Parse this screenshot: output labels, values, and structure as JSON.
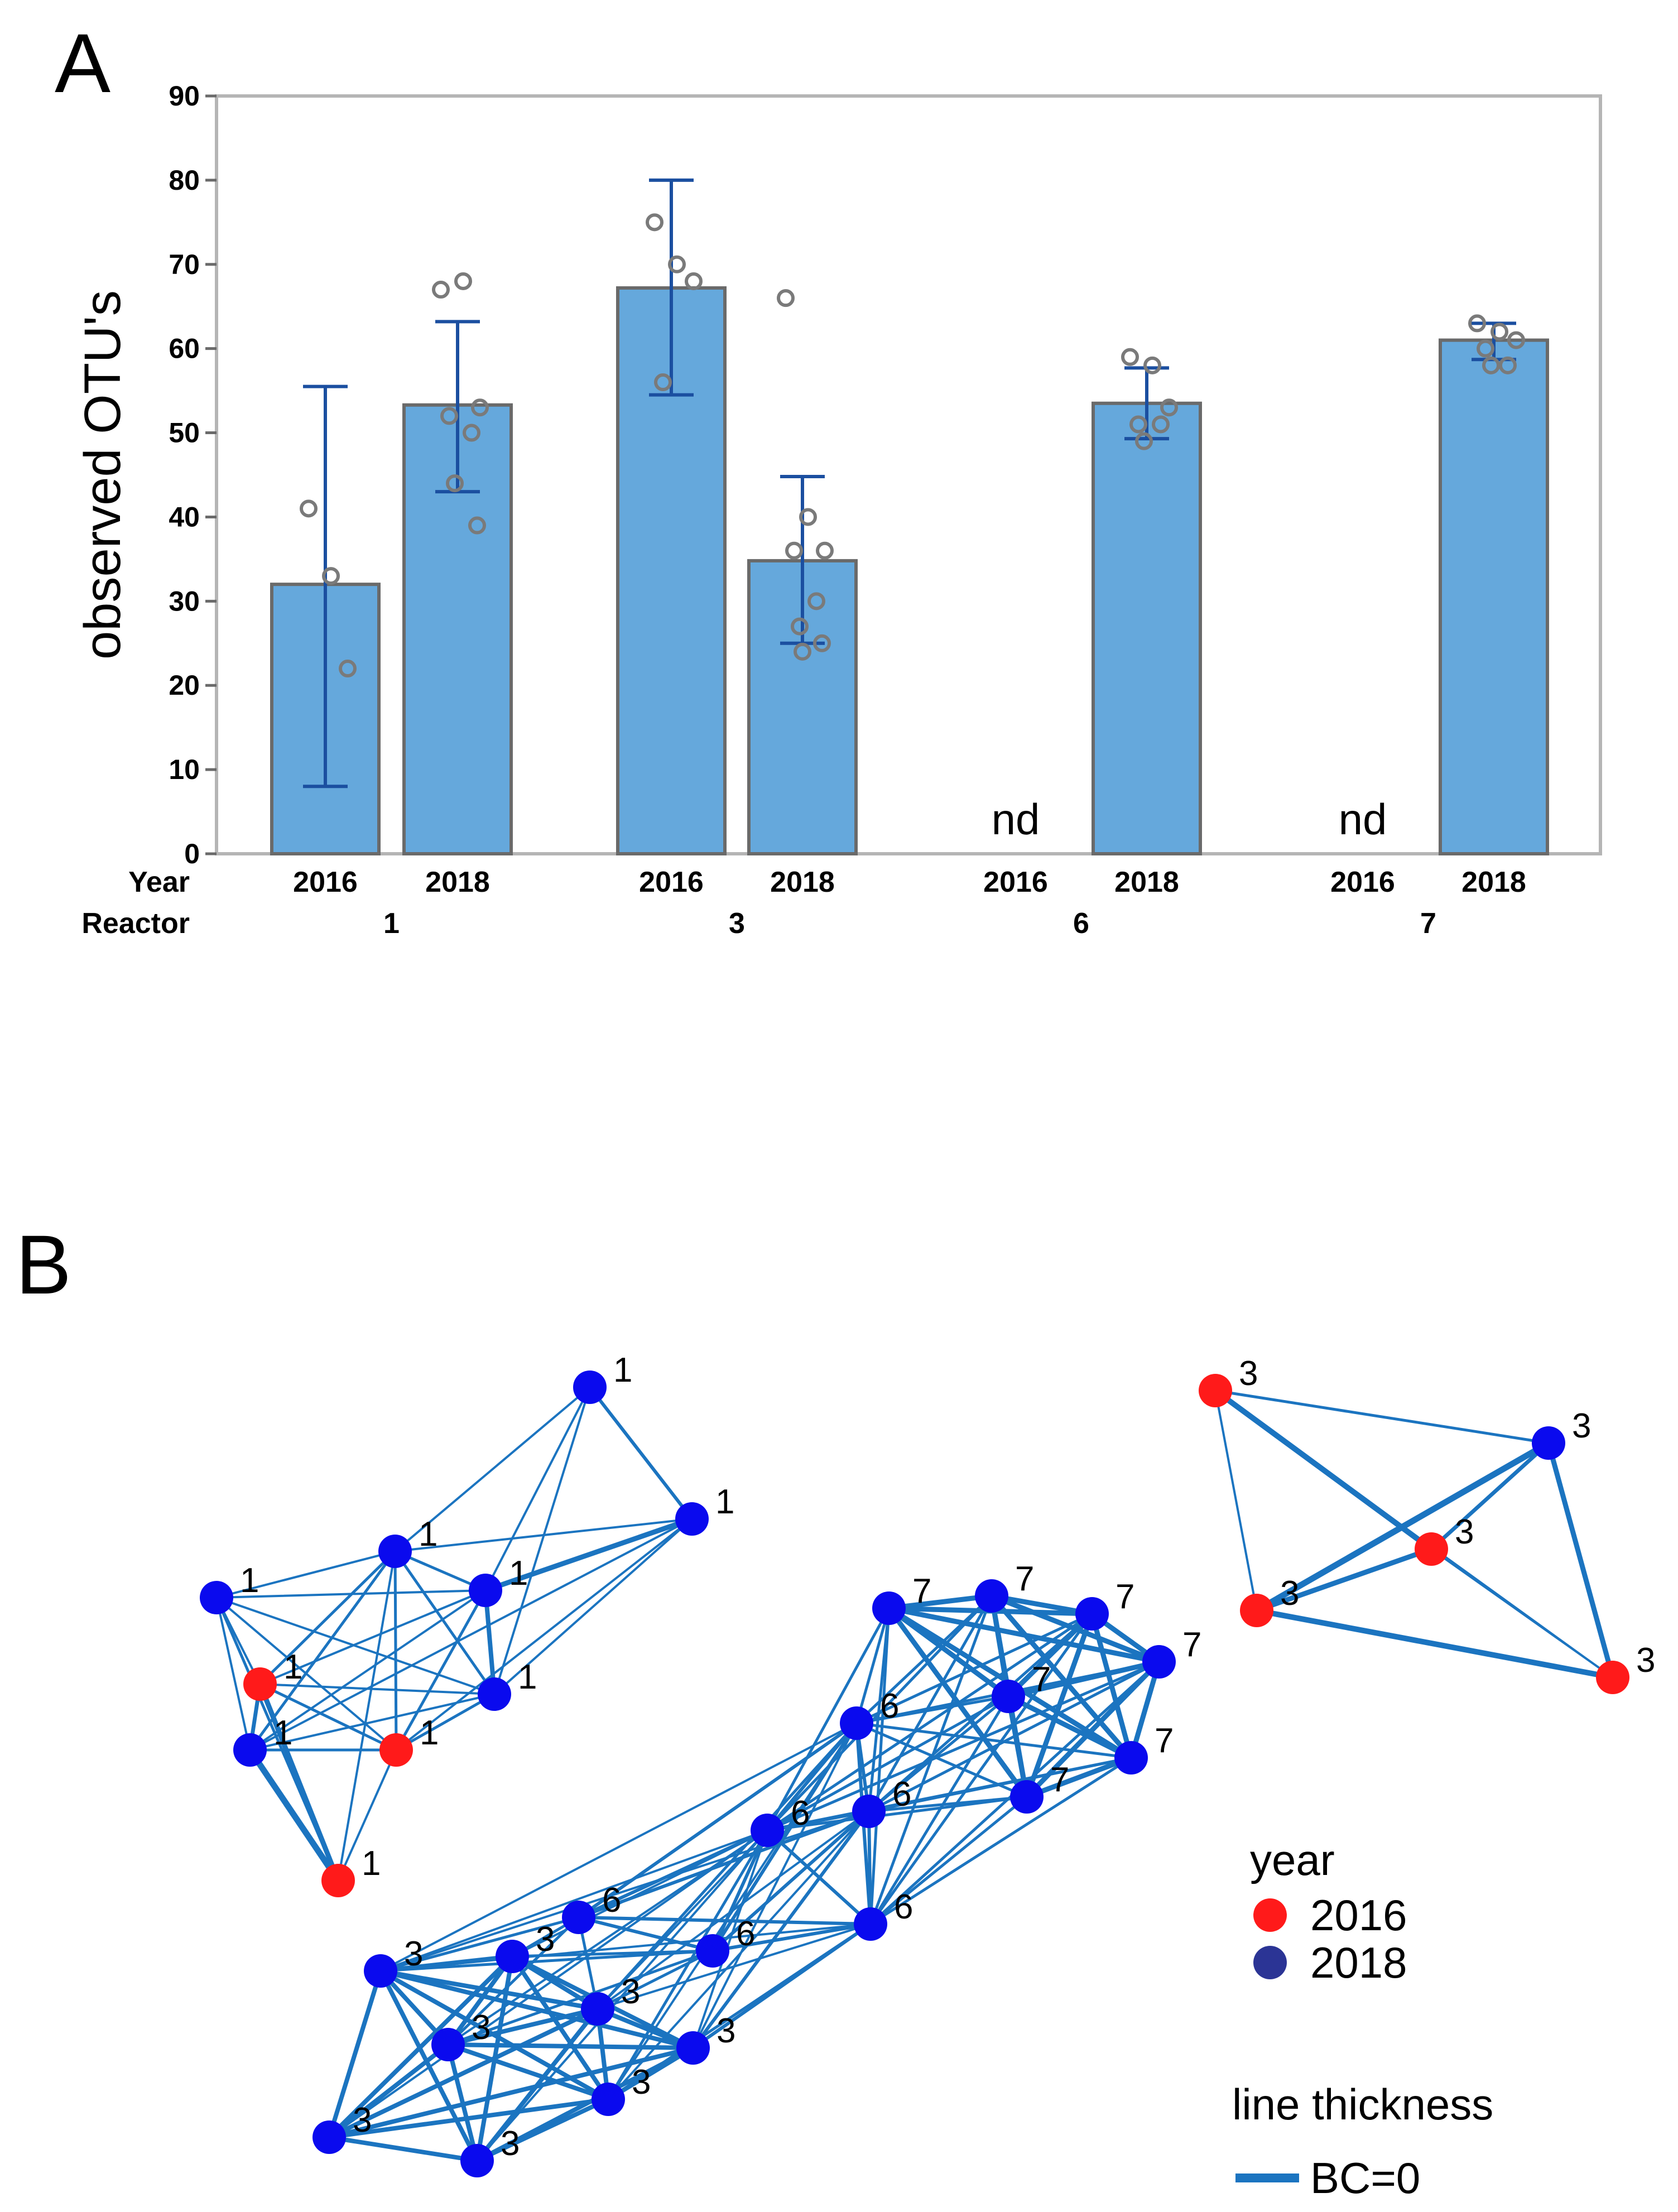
{
  "panel_a": {
    "letter": "A",
    "chart_data": {
      "type": "bar",
      "ylabel": "observed OTU's",
      "ylim": [
        0,
        90
      ],
      "yticks": [
        "0",
        "10",
        "20",
        "30",
        "40",
        "50",
        "60",
        "70",
        "80",
        "90"
      ],
      "row_labels": {
        "year": "Year",
        "reactor": "Reactor"
      },
      "groups": [
        {
          "reactor": "1",
          "bars": [
            {
              "year": "2016",
              "value": 32,
              "err_low": 8,
              "err_high": 55.5,
              "points": [
                41,
                33,
                22
              ],
              "nd": false,
              "nd_label": ""
            },
            {
              "year": "2018",
              "value": 53.3,
              "err_low": 43,
              "err_high": 63.2,
              "points": [
                67,
                68,
                53,
                52,
                50,
                44,
                39
              ],
              "nd": false,
              "nd_label": ""
            }
          ]
        },
        {
          "reactor": "3",
          "bars": [
            {
              "year": "2016",
              "value": 67.2,
              "err_low": 54.5,
              "err_high": 80,
              "points": [
                75,
                70,
                68,
                56
              ],
              "nd": false,
              "nd_label": ""
            },
            {
              "year": "2018",
              "value": 34.8,
              "err_low": 25,
              "err_high": 44.8,
              "points": [
                66,
                40,
                36,
                36,
                30,
                27,
                25,
                24
              ],
              "nd": false,
              "nd_label": ""
            }
          ]
        },
        {
          "reactor": "6",
          "bars": [
            {
              "year": "2016",
              "value": null,
              "err_low": null,
              "err_high": null,
              "points": [],
              "nd": true,
              "nd_label": "nd"
            },
            {
              "year": "2018",
              "value": 53.5,
              "err_low": 49.3,
              "err_high": 57.7,
              "points": [
                59,
                58,
                53,
                51,
                51,
                49
              ],
              "nd": false,
              "nd_label": ""
            }
          ]
        },
        {
          "reactor": "7",
          "bars": [
            {
              "year": "2016",
              "value": null,
              "err_low": null,
              "err_high": null,
              "points": [],
              "nd": true,
              "nd_label": "nd"
            },
            {
              "year": "2018",
              "value": 61,
              "err_low": 58.7,
              "err_high": 63,
              "points": [
                63,
                62,
                61,
                60,
                58,
                58
              ],
              "nd": false,
              "nd_label": ""
            }
          ]
        }
      ],
      "colors": {
        "bar_fill": "#65a8dc",
        "bar_edge": "#6a6a6a",
        "error_bar": "#1b4fa0",
        "point_edge": "#7a7a7a",
        "frame": "#b5b5b5"
      }
    }
  },
  "panel_b": {
    "letter": "B",
    "chart_data": {
      "type": "network",
      "nodes": [
        {
          "id": "a1",
          "label": "1",
          "year": "2018"
        },
        {
          "id": "a2",
          "label": "1",
          "year": "2018"
        },
        {
          "id": "a3",
          "label": "1",
          "year": "2018"
        },
        {
          "id": "a4",
          "label": "1",
          "year": "2018"
        },
        {
          "id": "a5",
          "label": "1",
          "year": "2018"
        },
        {
          "id": "a6",
          "label": "1",
          "year": "2016"
        },
        {
          "id": "a7",
          "label": "1",
          "year": "2018"
        },
        {
          "id": "a8",
          "label": "1",
          "year": "2016"
        },
        {
          "id": "a9",
          "label": "1",
          "year": "2018"
        },
        {
          "id": "a10",
          "label": "1",
          "year": "2016"
        },
        {
          "id": "b1",
          "label": "3",
          "year": "2016"
        },
        {
          "id": "b2",
          "label": "3",
          "year": "2018"
        },
        {
          "id": "b3",
          "label": "3",
          "year": "2016"
        },
        {
          "id": "b4",
          "label": "3",
          "year": "2016"
        },
        {
          "id": "b5",
          "label": "3",
          "year": "2016"
        },
        {
          "id": "s1",
          "label": "7",
          "year": "2018"
        },
        {
          "id": "s2",
          "label": "7",
          "year": "2018"
        },
        {
          "id": "s3",
          "label": "7",
          "year": "2018"
        },
        {
          "id": "s4",
          "label": "7",
          "year": "2018"
        },
        {
          "id": "s5",
          "label": "7",
          "year": "2018"
        },
        {
          "id": "s6",
          "label": "7",
          "year": "2018"
        },
        {
          "id": "s7",
          "label": "7",
          "year": "2018"
        },
        {
          "id": "s8",
          "label": "6",
          "year": "2018"
        },
        {
          "id": "s9",
          "label": "6",
          "year": "2018"
        },
        {
          "id": "s10",
          "label": "6",
          "year": "2018"
        },
        {
          "id": "s11",
          "label": "6",
          "year": "2018"
        },
        {
          "id": "s12",
          "label": "6",
          "year": "2018"
        },
        {
          "id": "s13",
          "label": "6",
          "year": "2018"
        },
        {
          "id": "s14",
          "label": "3",
          "year": "2018"
        },
        {
          "id": "s15",
          "label": "3",
          "year": "2018"
        },
        {
          "id": "s16",
          "label": "3",
          "year": "2018"
        },
        {
          "id": "s17",
          "label": "3",
          "year": "2018"
        },
        {
          "id": "s18",
          "label": "3",
          "year": "2018"
        },
        {
          "id": "s19",
          "label": "3",
          "year": "2018"
        },
        {
          "id": "s20",
          "label": "3",
          "year": "2018"
        },
        {
          "id": "s21",
          "label": "3",
          "year": "2018"
        }
      ],
      "legend": {
        "year_title": "year",
        "years": [
          {
            "label": "2016",
            "color": "#ff1a1a"
          },
          {
            "label": "2018",
            "color": "#2b3495"
          }
        ],
        "thickness_title": "line thickness",
        "thickness_label": "BC=0"
      },
      "colors": {
        "node_2016": "#ff1a1a",
        "node_2018": "#0a0aee",
        "edge": "#1b74c0"
      }
    }
  }
}
